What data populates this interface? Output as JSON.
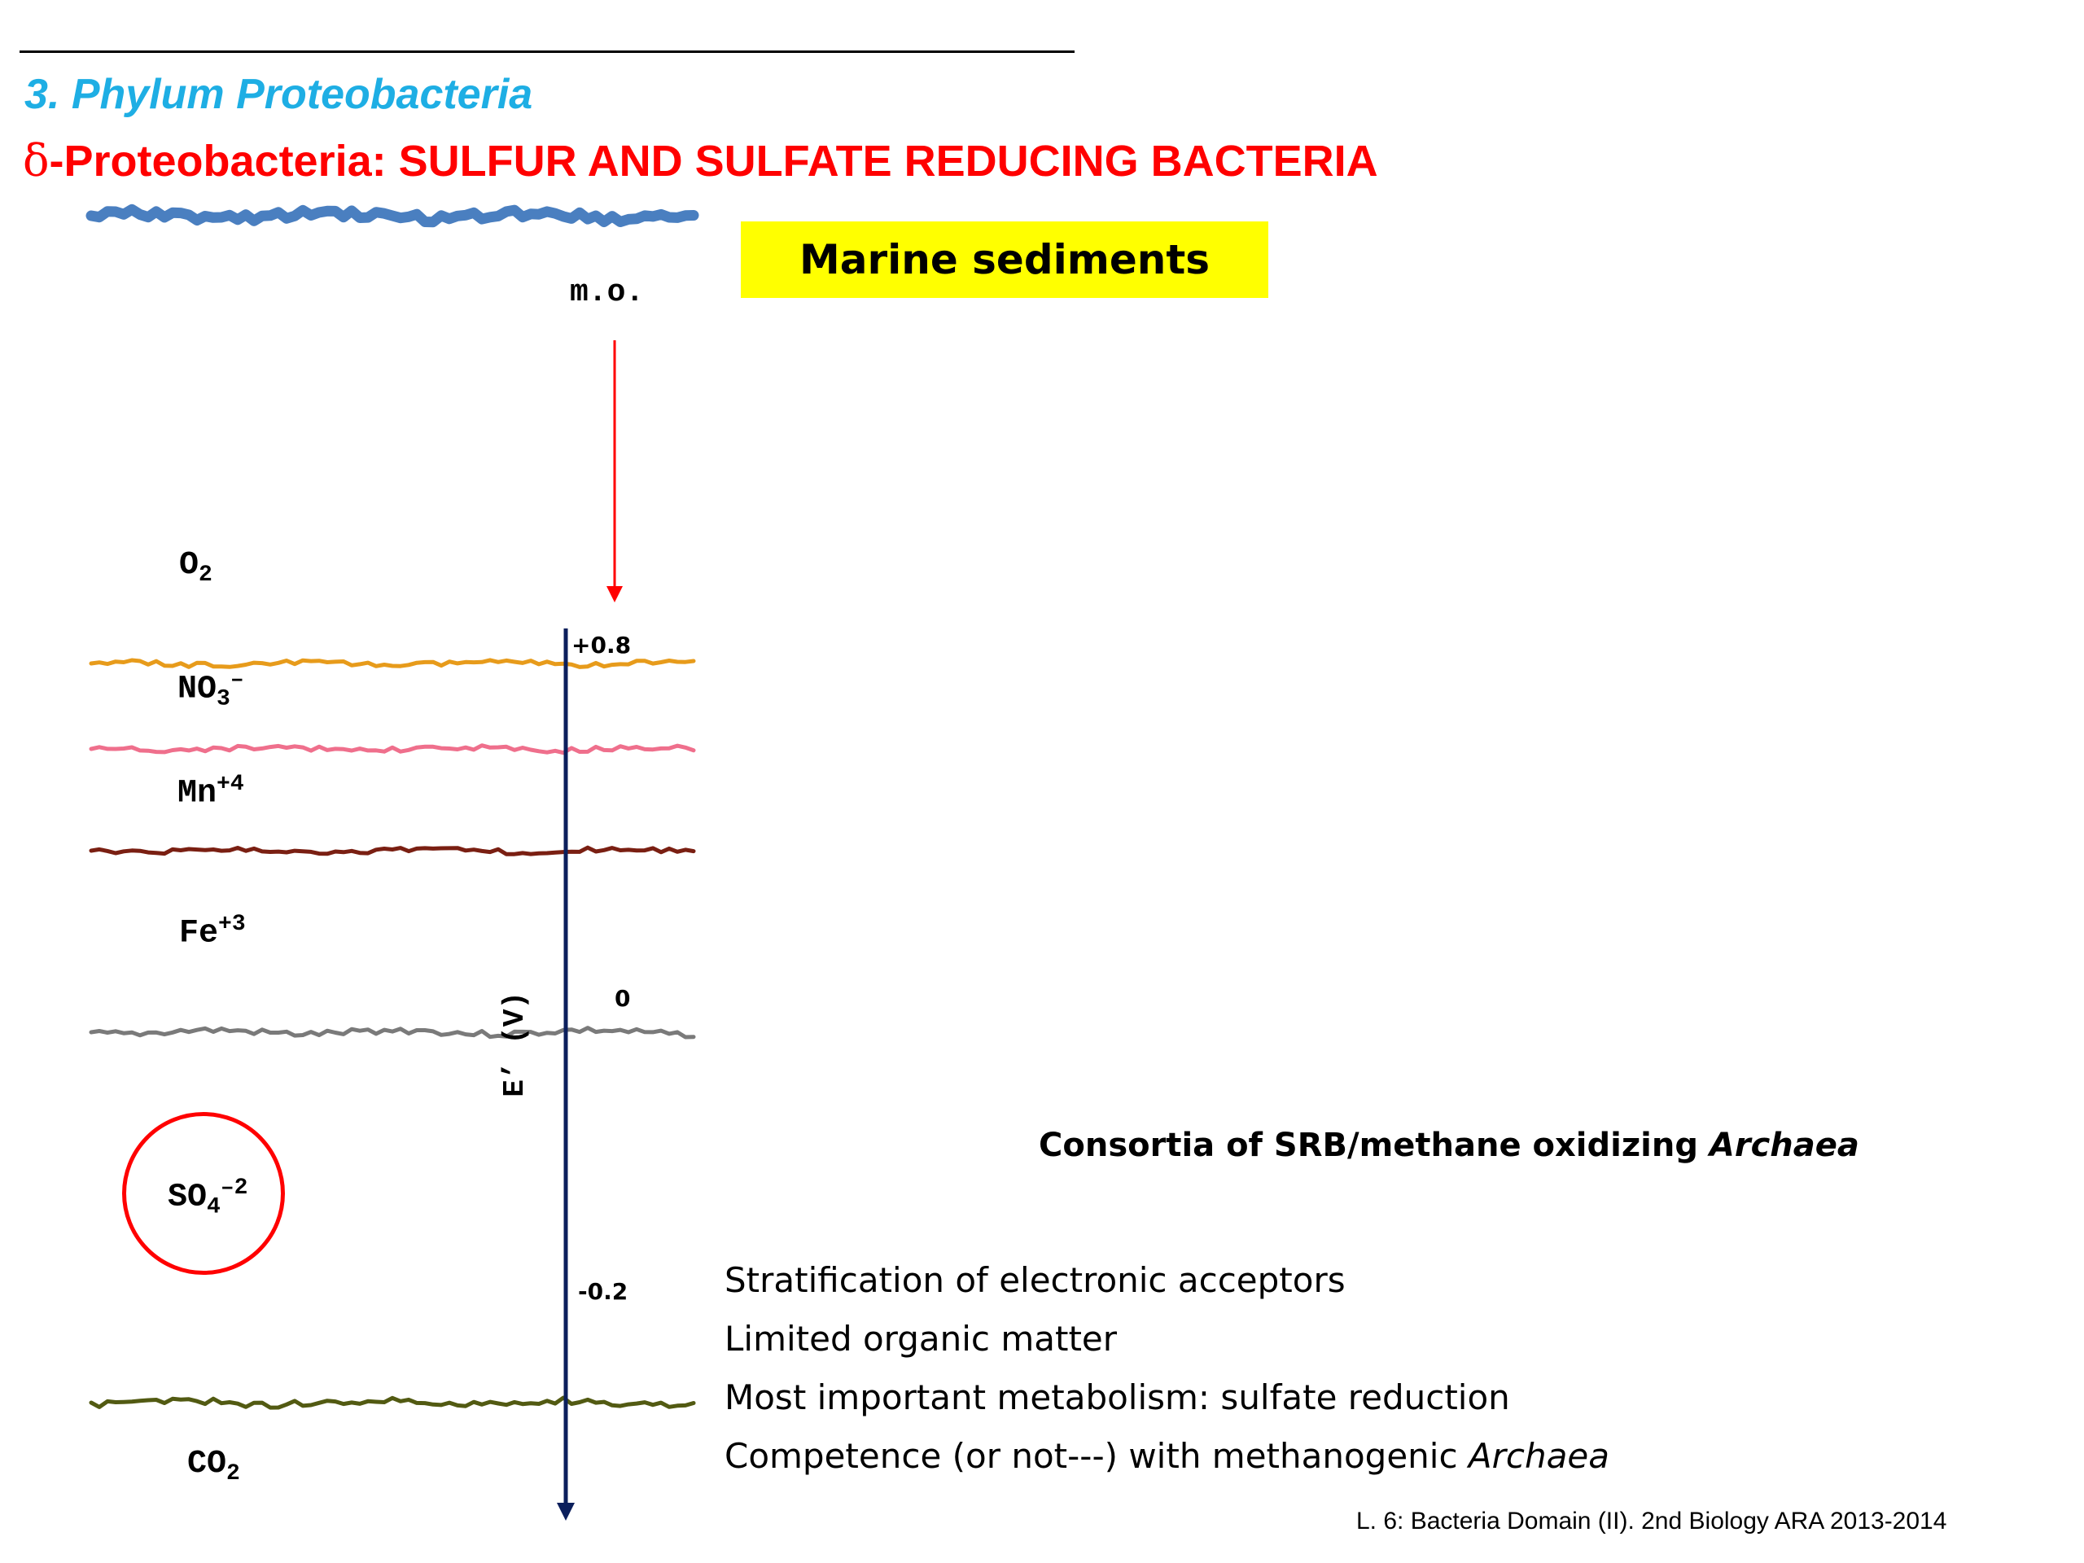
{
  "header": {
    "section_title": "3. Phylum Proteobacteria",
    "subsection_greek": "δ",
    "subsection_rest": "-Proteobacteria: SULFUR AND SULFATE REDUCING BACTERIA"
  },
  "diagram": {
    "environment_label": "Marine sediments",
    "input_label": "m.o.",
    "axis_label": "E’ (V)",
    "scale_ticks": [
      "+0.8",
      "0",
      "-0.2"
    ],
    "acceptors": [
      {
        "base": "O",
        "sub": "2",
        "sup": ""
      },
      {
        "base": "NO",
        "sub": "3",
        "sup": "–"
      },
      {
        "base": "Mn",
        "sub": "",
        "sup": "+4"
      },
      {
        "base": "Fe",
        "sub": "",
        "sup": "+3"
      },
      {
        "base": "SO",
        "sub": "4",
        "sup": "–2"
      },
      {
        "base": "CO",
        "sub": "2",
        "sup": ""
      }
    ],
    "layer_colors": [
      "#4a7fc0",
      "#e79b1b",
      "#ef6f8c",
      "#7a1f12",
      "#7a7a7a",
      "#525a12"
    ],
    "arrow_color": "#ff0000",
    "axis_color": "#0b1f5c",
    "highlight_color": "#ff0000",
    "highlighted_acceptor": "SO4-2"
  },
  "notes": {
    "consortia_text": "Consortia of SRB/methane oxidizing ",
    "consortia_italic": "Archaea",
    "bullets": [
      {
        "text": "Stratification of electronic acceptors",
        "italic": ""
      },
      {
        "text": "Limited organic matter",
        "italic": ""
      },
      {
        "text": "Most important metabolism: sulfate reduction",
        "italic": ""
      },
      {
        "text": "Competence (or not---) with methanogenic ",
        "italic": "Archaea"
      }
    ]
  },
  "footer": {
    "text": "L. 6: Bacteria Domain (II). 2nd Biology ARA 2013-2014"
  }
}
